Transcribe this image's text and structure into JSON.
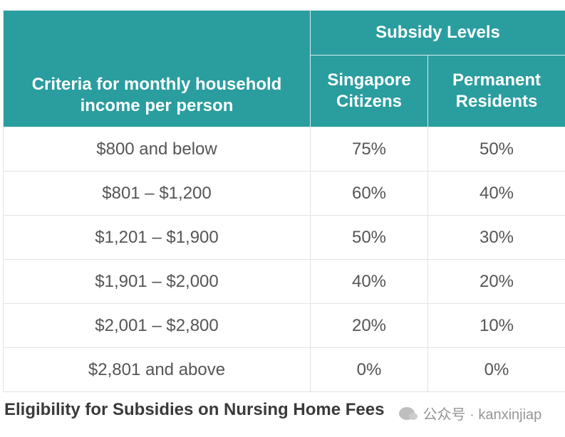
{
  "table": {
    "header": {
      "criteria": "Criteria for monthly household income per person",
      "group": "Subsidy Levels",
      "col_citizens": "Singapore Citizens",
      "col_pr": "Permanent Residents"
    },
    "rows": [
      {
        "income": "$800 and below",
        "citizens": "75%",
        "pr": "50%"
      },
      {
        "income": "$801 – $1,200",
        "citizens": "60%",
        "pr": "40%"
      },
      {
        "income": "$1,201 – $1,900",
        "citizens": "50%",
        "pr": "30%"
      },
      {
        "income": "$1,901 – $2,000",
        "citizens": "40%",
        "pr": "20%"
      },
      {
        "income": "$2,001 – $2,800",
        "citizens": "20%",
        "pr": "10%"
      },
      {
        "income": "$2,801 and above",
        "citizens": "0%",
        "pr": "0%"
      }
    ]
  },
  "caption": "Eligibility for Subsidies on Nursing Home Fees",
  "watermark": {
    "text": "公众号 · kanxinjiap",
    "icon": "wechat-logo-icon"
  },
  "colors": {
    "header_bg": "#2a9d9f",
    "header_text": "#ffffff",
    "cell_text": "#555555"
  }
}
